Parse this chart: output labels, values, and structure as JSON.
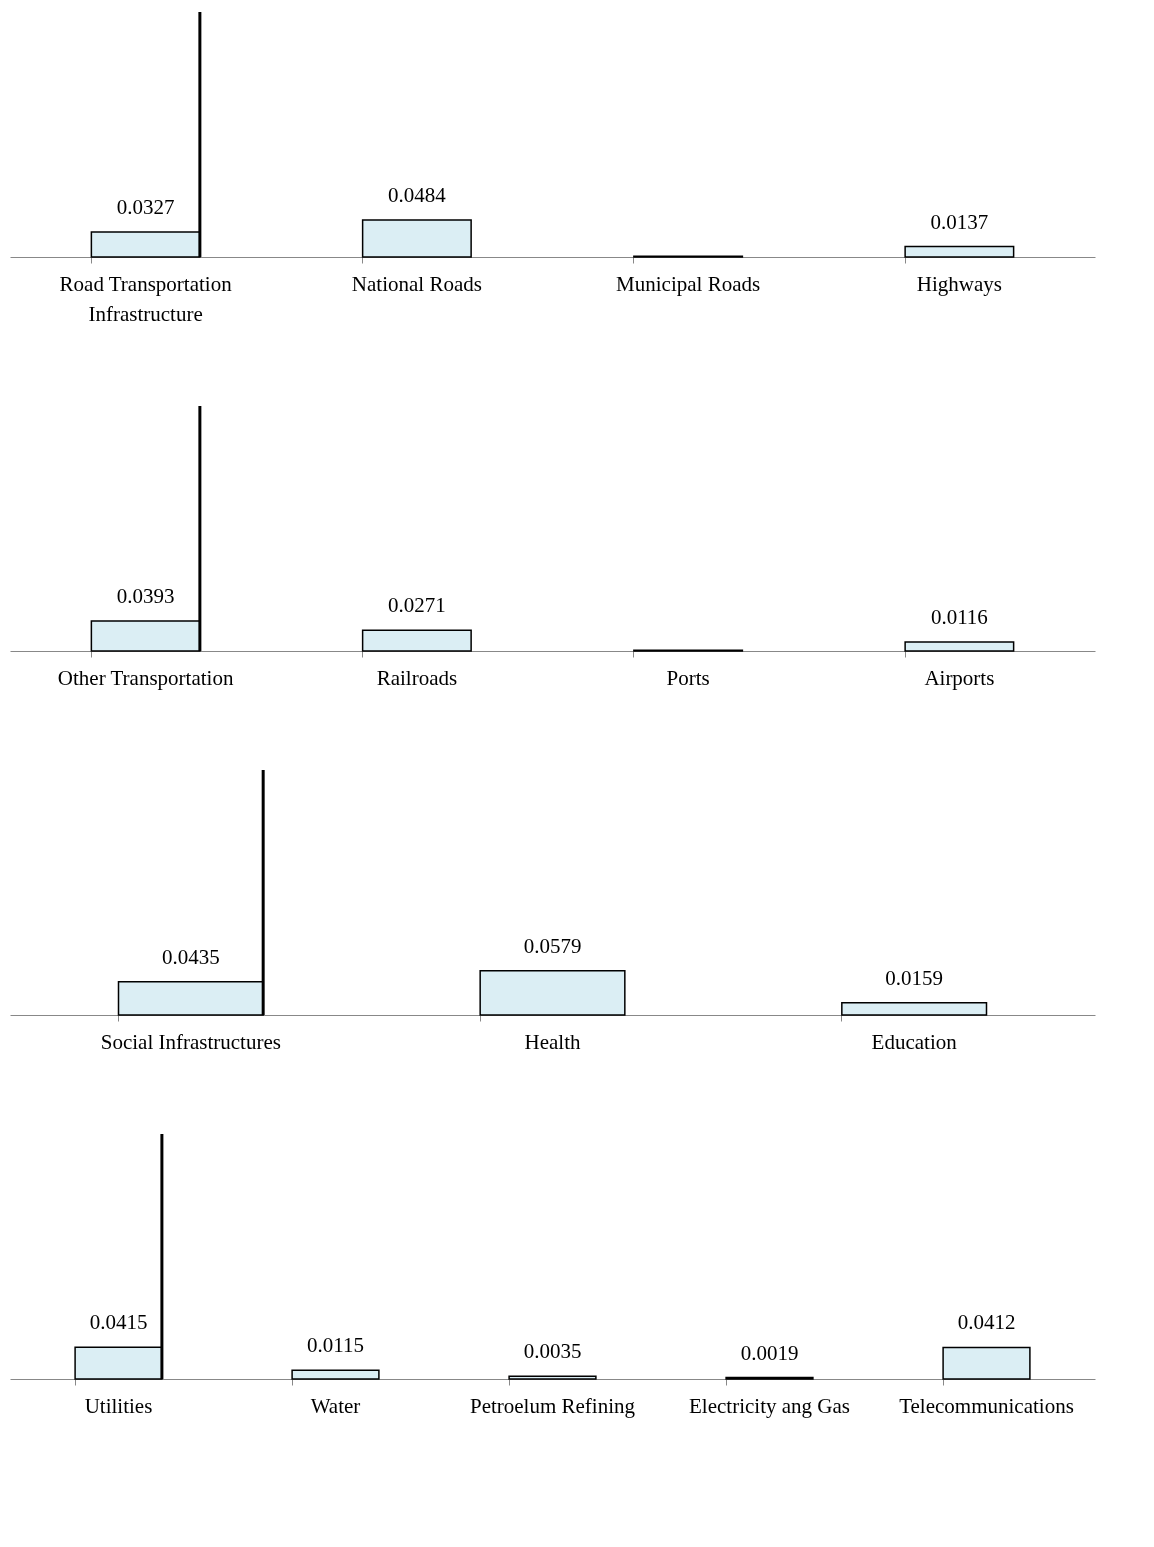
{
  "chart_data": [
    {
      "type": "bar",
      "categories": [
        "Road Transportation Infrastructure",
        "National Roads",
        "Municipal Roads",
        "Highways"
      ],
      "values": [
        0.0327,
        0.0484,
        0.001,
        0.0137
      ],
      "value_labels": [
        "0.0327",
        "0.0484",
        null,
        "0.0137"
      ],
      "color": "#dbeef4",
      "ylim": [
        0,
        0.32
      ],
      "tick_labels": "x",
      "grid": false,
      "ref_lines": [
        {
          "axis": "x",
          "value": "Road Transportation Infrastructure",
          "color": "#000000"
        }
      ]
    },
    {
      "type": "bar",
      "categories": [
        "Other Transportation",
        "Railroads",
        "Ports",
        "Airports"
      ],
      "values": [
        0.0393,
        0.0271,
        0.001,
        0.0116
      ],
      "value_labels": [
        "0.0393",
        "0.0271",
        null,
        "0.0116"
      ],
      "color": "#dbeef4",
      "ylim": [
        0,
        0.32
      ],
      "tick_labels": "x",
      "grid": false,
      "ref_lines": [
        {
          "axis": "x",
          "value": "Other Transportation",
          "color": "#000000"
        }
      ]
    },
    {
      "type": "bar",
      "categories": [
        "Social Infrastructures",
        "Health",
        "Education"
      ],
      "values": [
        0.0435,
        0.0579,
        0.0159
      ],
      "value_labels": [
        "0.0435",
        "0.0579",
        "0.0159"
      ],
      "color": "#dbeef4",
      "ylim": [
        0,
        0.32
      ],
      "tick_labels": "x",
      "grid": false,
      "ref_lines": [
        {
          "axis": "x",
          "value": "Social Infrastructures",
          "color": "#000000"
        }
      ]
    },
    {
      "type": "bar",
      "categories": [
        "Utilities",
        "Water",
        "Petroelum Refining",
        "Electricity ang Gas",
        "Telecommunications"
      ],
      "values": [
        0.0415,
        0.0115,
        0.0035,
        0.0019,
        0.0412
      ],
      "value_labels": [
        "0.0415",
        "0.0115",
        "0.0035",
        "0.0019",
        "0.0412"
      ],
      "color": "#dbeef4",
      "ylim": [
        0,
        0.32
      ],
      "tick_labels": "x",
      "grid": false,
      "ref_lines": [
        {
          "axis": "x",
          "value": "Utilities",
          "color": "#000000"
        }
      ]
    }
  ]
}
